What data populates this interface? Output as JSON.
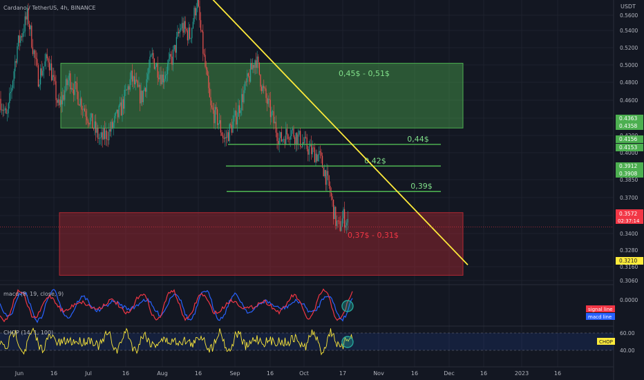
{
  "header": {
    "symbol_label": "Cardano / TetherUS, 4h, BINANCE",
    "currency": "USDT"
  },
  "chart_data": {
    "type": "candlestick",
    "price_axis": {
      "range": [
        0.29,
        0.575
      ],
      "ticks": [
        "0.5600",
        "0.5400",
        "0.5200",
        "0.5000",
        "0.4800",
        "0.4600",
        "0.4400",
        "0.4200",
        "0.4000",
        "0.3850",
        "0.3700",
        "0.3550",
        "0.3400",
        "0.3280",
        "0.3160",
        "0.3060"
      ]
    },
    "price_badges": [
      {
        "text": "0.4363",
        "bg": "#4caf50",
        "fg": "#ffffff"
      },
      {
        "text": "0.4358",
        "bg": "#4caf50",
        "fg": "#ffffff"
      },
      {
        "text": "0.4156",
        "bg": "#4caf50",
        "fg": "#ffffff"
      },
      {
        "text": "0.4153",
        "bg": "#4caf50",
        "fg": "#ffffff"
      },
      {
        "text": "0.3912",
        "bg": "#4caf50",
        "fg": "#ffffff"
      },
      {
        "text": "0.3908",
        "bg": "#4caf50",
        "fg": "#ffffff"
      },
      {
        "text": "0.3210",
        "bg": "#ffeb3b",
        "fg": "#131722"
      }
    ],
    "last_price": {
      "price": "0.3572",
      "countdown": "02:37:14",
      "color": "#f23645"
    },
    "time_axis": [
      "Jun",
      "16",
      "Jul",
      "16",
      "Aug",
      "16",
      "Sep",
      "16",
      "Oct",
      "17",
      "Nov",
      "16",
      "Dec",
      "16",
      "2023",
      "16"
    ],
    "zones": [
      {
        "label": "0,45$ - 0,51$",
        "bottom": 0.452,
        "top": 0.514,
        "fill": "#4caf50",
        "label_color": "#81e08a"
      },
      {
        "label": "0,37$ - 0,31$",
        "bottom": 0.311,
        "top": 0.371,
        "fill": "#b22833",
        "label_color": "#f23645"
      }
    ],
    "levels": [
      {
        "label": "0,44$",
        "price": 0.4363,
        "color": "#4caf50"
      },
      {
        "label": "0,42$",
        "price": 0.4156,
        "color": "#4caf50"
      },
      {
        "label": "0,39$",
        "price": 0.3912,
        "color": "#4caf50"
      }
    ],
    "trendline": {
      "color": "#ffeb3b",
      "start": 0.575,
      "end": 0.321
    },
    "candles": {
      "start_price": 0.48,
      "last_price": 0.3572,
      "up_color": "#26a69a",
      "down_color": "#ef5350"
    },
    "macd_panel": {
      "label": "macd (8, 19, close, 9)",
      "tick": "0.0000",
      "legend": [
        {
          "text": "signal line",
          "color": "#f23645"
        },
        {
          "text": "macd line",
          "color": "#2962ff"
        }
      ]
    },
    "chop_panel": {
      "label": "CHOP (14, 1, 100)",
      "ticks": [
        "60.00",
        "40.00"
      ],
      "badge": {
        "text": "CHOP",
        "color": "#ffeb3b"
      }
    }
  }
}
